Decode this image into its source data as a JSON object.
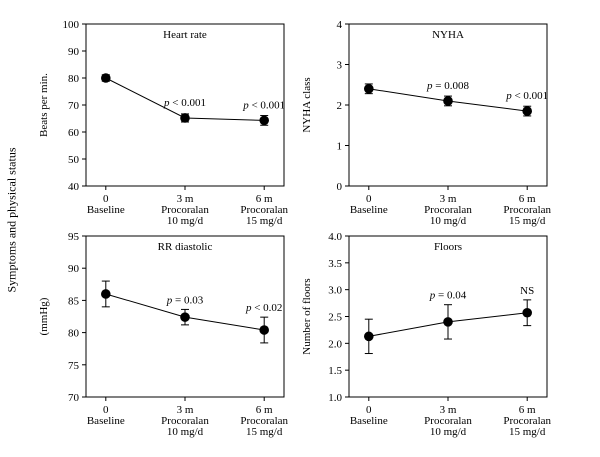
{
  "figure": {
    "side_label": "Symptoms and physical status"
  },
  "chart_data": [
    {
      "type": "line",
      "title": "Heart rate",
      "ylabel": "Beats per min.",
      "ylim": [
        40,
        100
      ],
      "yticks": [
        "40",
        "50",
        "60",
        "70",
        "80",
        "90",
        "100"
      ],
      "categories": [
        [
          "0",
          "Baseline"
        ],
        [
          "3 m",
          "Procoralan",
          "10 mg/d"
        ],
        [
          "6 m",
          "Procoralan",
          "15 mg/d"
        ]
      ],
      "values": [
        80,
        65.2,
        64.3
      ],
      "errors": [
        1.2,
        1.5,
        1.8
      ],
      "annotations": [
        "",
        "p < 0.001",
        "p < 0.001"
      ]
    },
    {
      "type": "line",
      "title": "NYHA",
      "ylabel": "NYHA class",
      "ylim": [
        0,
        4
      ],
      "yticks": [
        "0",
        "1",
        "2",
        "3",
        "4"
      ],
      "categories": [
        [
          "0",
          "Baseline"
        ],
        [
          "3 m",
          "Procoralan",
          "10 mg/d"
        ],
        [
          "6 m",
          "Procoralan",
          "15 mg/d"
        ]
      ],
      "values": [
        2.4,
        2.1,
        1.85
      ],
      "errors": [
        0.12,
        0.12,
        0.12
      ],
      "annotations": [
        "",
        "p = 0.008",
        "p < 0.001"
      ]
    },
    {
      "type": "line",
      "title": "RR diastolic",
      "ylabel": "(mmHg)",
      "ylim": [
        70,
        95
      ],
      "yticks": [
        "70",
        "75",
        "80",
        "85",
        "90",
        "95"
      ],
      "categories": [
        [
          "0",
          "Baseline"
        ],
        [
          "3 m",
          "Procoralan",
          "10 mg/d"
        ],
        [
          "6 m",
          "Procoralan",
          "15 mg/d"
        ]
      ],
      "values": [
        86,
        82.4,
        80.4
      ],
      "errors": [
        2,
        1.2,
        2
      ],
      "annotations": [
        "",
        "p = 0.03",
        "p < 0.02"
      ]
    },
    {
      "type": "line",
      "title": "Floors",
      "ylabel": "Number of floors",
      "ylim": [
        1.0,
        4.0
      ],
      "yticks": [
        "1.0",
        "1.5",
        "2.0",
        "2.5",
        "3.0",
        "3.5",
        "4.0"
      ],
      "categories": [
        [
          "0",
          "Baseline"
        ],
        [
          "3 m",
          "Procoralan",
          "10 mg/d"
        ],
        [
          "6 m",
          "Procoralan",
          "15 mg/d"
        ]
      ],
      "values": [
        2.13,
        2.4,
        2.57
      ],
      "errors": [
        0.32,
        0.32,
        0.24
      ],
      "annotations": [
        "",
        "p = 0.04",
        "NS"
      ]
    }
  ]
}
